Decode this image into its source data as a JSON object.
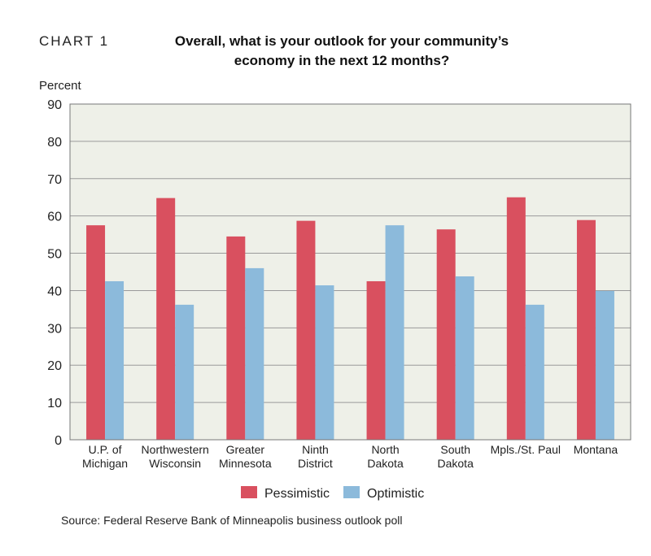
{
  "chart_number": "CHART 1",
  "source": "Source: Federal Reserve Bank of Minneapolis business outlook poll",
  "chart_data": {
    "type": "bar",
    "title_lines": [
      "Overall, what is your outlook for your community’s",
      "economy in the next 12 months?"
    ],
    "ylabel": "Percent",
    "xlabel": "",
    "ylim": [
      0,
      90
    ],
    "yticks": [
      0,
      10,
      20,
      30,
      40,
      50,
      60,
      70,
      80,
      90
    ],
    "grid": true,
    "legend_position": "bottom",
    "categories": [
      [
        "U.P. of",
        "Michigan"
      ],
      [
        "Northwestern",
        "Wisconsin"
      ],
      [
        "Greater",
        "Minnesota"
      ],
      [
        "Ninth",
        "District"
      ],
      [
        "North",
        "Dakota"
      ],
      [
        "South",
        "Dakota"
      ],
      [
        "Mpls./St. Paul"
      ],
      [
        "Montana"
      ]
    ],
    "series": [
      {
        "name": "Pessimistic",
        "color": "#d9505f",
        "values": [
          57.5,
          64.8,
          54.5,
          58.7,
          42.5,
          56.4,
          65.0,
          58.9
        ]
      },
      {
        "name": "Optimistic",
        "color": "#8cbadb",
        "values": [
          42.5,
          36.2,
          46.0,
          41.4,
          57.5,
          43.8,
          36.2,
          39.9
        ]
      }
    ],
    "plot_background": "#eef0e8"
  }
}
